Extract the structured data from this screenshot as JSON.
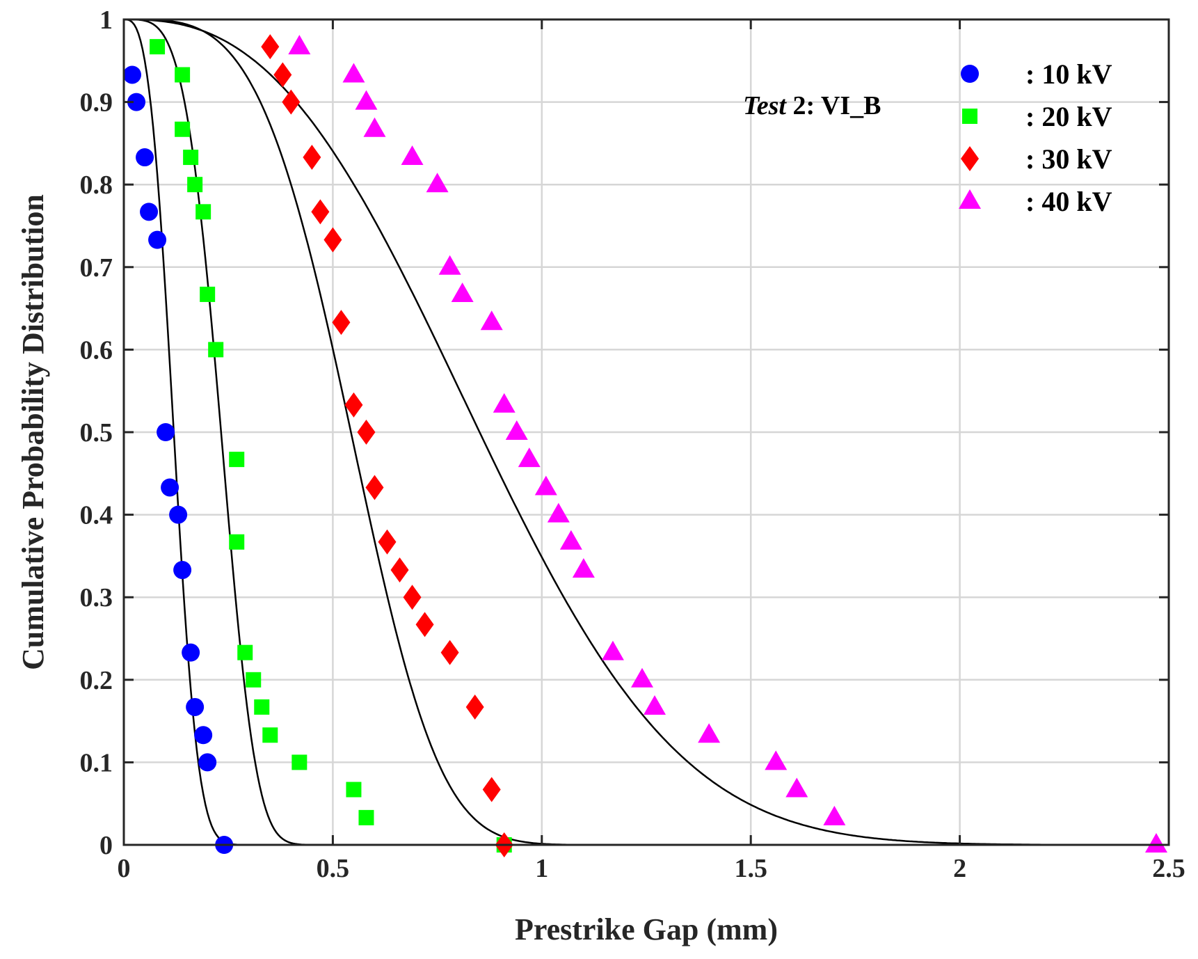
{
  "chart_data": {
    "type": "scatter",
    "title": "",
    "xlabel": "Prestrike Gap (mm)",
    "ylabel": "Cumulative Probability Distribution",
    "xlim": [
      0,
      2.5
    ],
    "ylim": [
      0,
      1
    ],
    "xticks": [
      0,
      0.5,
      1,
      1.5,
      2,
      2.5
    ],
    "xtick_labels": [
      "0",
      "0.5",
      "1",
      "1.5",
      "2",
      "2.5"
    ],
    "yticks": [
      0,
      0.1,
      0.2,
      0.3,
      0.4,
      0.5,
      0.6,
      0.7,
      0.8,
      0.9,
      1
    ],
    "ytick_labels": [
      "0",
      "0.1",
      "0.2",
      "0.3",
      "0.4",
      "0.5",
      "0.6",
      "0.7",
      "0.8",
      "0.9",
      "1"
    ],
    "grid": true,
    "legend_position": "top-right",
    "annotation": {
      "italic": "Test",
      "rest": " 2: VI_B"
    },
    "series": [
      {
        "name": ": 10 kV",
        "marker": "circle",
        "color": "#0000ff",
        "points": [
          [
            0.02,
            0.933
          ],
          [
            0.03,
            0.9
          ],
          [
            0.05,
            0.833
          ],
          [
            0.06,
            0.767
          ],
          [
            0.08,
            0.733
          ],
          [
            0.1,
            0.5
          ],
          [
            0.11,
            0.433
          ],
          [
            0.13,
            0.4
          ],
          [
            0.14,
            0.333
          ],
          [
            0.16,
            0.233
          ],
          [
            0.17,
            0.167
          ],
          [
            0.19,
            0.133
          ],
          [
            0.2,
            0.1
          ],
          [
            0.24,
            0.0
          ]
        ],
        "fit": {
          "scale": 0.135,
          "shape": 3.0
        }
      },
      {
        "name": ": 20 kV",
        "marker": "square",
        "color": "#00ff00",
        "points": [
          [
            0.08,
            0.967
          ],
          [
            0.14,
            0.933
          ],
          [
            0.14,
            0.867
          ],
          [
            0.16,
            0.833
          ],
          [
            0.17,
            0.8
          ],
          [
            0.19,
            0.767
          ],
          [
            0.2,
            0.667
          ],
          [
            0.22,
            0.6
          ],
          [
            0.27,
            0.467
          ],
          [
            0.27,
            0.367
          ],
          [
            0.29,
            0.233
          ],
          [
            0.31,
            0.2
          ],
          [
            0.33,
            0.167
          ],
          [
            0.35,
            0.133
          ],
          [
            0.42,
            0.1
          ],
          [
            0.55,
            0.067
          ],
          [
            0.58,
            0.033
          ],
          [
            0.91,
            0.0
          ]
        ],
        "fit": {
          "scale": 0.255,
          "shape": 4.0
        }
      },
      {
        "name": ": 30 kV",
        "marker": "diamond",
        "color": "#ff0000",
        "points": [
          [
            0.35,
            0.967
          ],
          [
            0.38,
            0.933
          ],
          [
            0.4,
            0.9
          ],
          [
            0.45,
            0.833
          ],
          [
            0.47,
            0.767
          ],
          [
            0.5,
            0.733
          ],
          [
            0.52,
            0.633
          ],
          [
            0.55,
            0.533
          ],
          [
            0.58,
            0.5
          ],
          [
            0.6,
            0.433
          ],
          [
            0.63,
            0.367
          ],
          [
            0.66,
            0.333
          ],
          [
            0.69,
            0.3
          ],
          [
            0.72,
            0.267
          ],
          [
            0.78,
            0.233
          ],
          [
            0.84,
            0.167
          ],
          [
            0.88,
            0.067
          ],
          [
            0.91,
            0.0
          ]
        ],
        "fit": {
          "scale": 0.6,
          "shape": 3.7
        }
      },
      {
        "name": ": 40 kV",
        "marker": "triangle",
        "color": "#ff00ff",
        "points": [
          [
            0.42,
            0.967
          ],
          [
            0.55,
            0.933
          ],
          [
            0.58,
            0.9
          ],
          [
            0.6,
            0.867
          ],
          [
            0.69,
            0.833
          ],
          [
            0.75,
            0.8
          ],
          [
            0.78,
            0.7
          ],
          [
            0.81,
            0.667
          ],
          [
            0.88,
            0.633
          ],
          [
            0.91,
            0.533
          ],
          [
            0.94,
            0.5
          ],
          [
            0.97,
            0.467
          ],
          [
            1.01,
            0.433
          ],
          [
            1.04,
            0.4
          ],
          [
            1.07,
            0.367
          ],
          [
            1.1,
            0.333
          ],
          [
            1.17,
            0.233
          ],
          [
            1.24,
            0.2
          ],
          [
            1.27,
            0.167
          ],
          [
            1.4,
            0.133
          ],
          [
            1.56,
            0.1
          ],
          [
            1.61,
            0.067
          ],
          [
            1.7,
            0.033
          ],
          [
            2.47,
            0.0
          ]
        ],
        "fit": {
          "scale": 0.98,
          "shape": 2.6
        }
      }
    ]
  }
}
